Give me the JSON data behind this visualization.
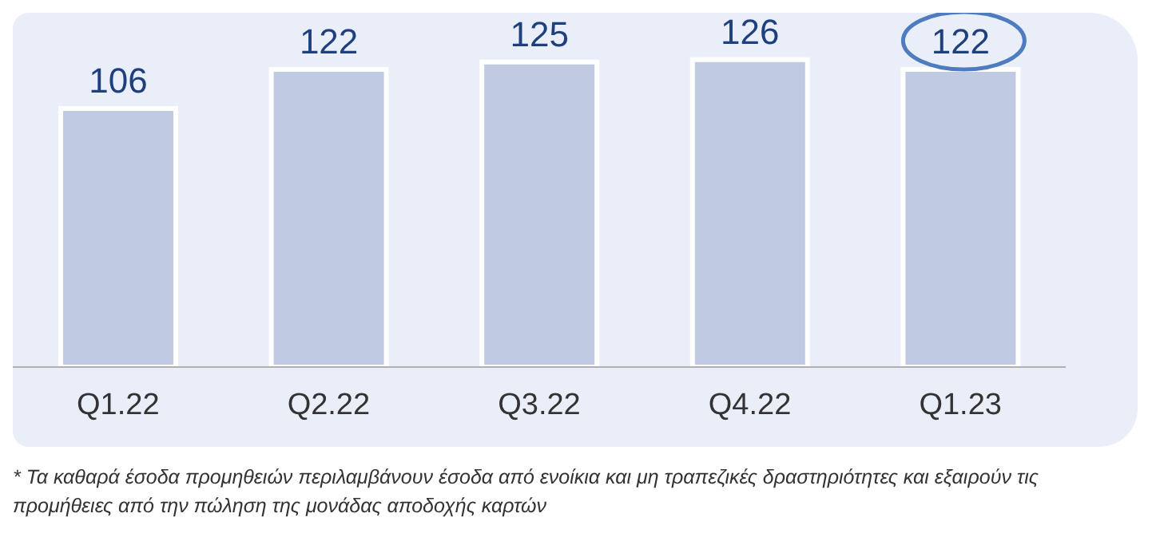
{
  "chart_data": {
    "type": "bar",
    "categories": [
      "Q1.22",
      "Q2.22",
      "Q3.22",
      "Q4.22",
      "Q1.23"
    ],
    "values": [
      106,
      122,
      125,
      126,
      122
    ],
    "color": "#c0cbe3",
    "tick_labels": "x",
    "data_labels": true,
    "annotations": [
      "* Τα καθαρά έσοδα προμηθειών περιλαμβάνουν έσοδα από ενοίκια και μη τραπεζικές δραστηριότητες και εξαιρούν τις προμήθειες από την πώληση της μονάδας αποδοχής καρτών"
    ]
  }
}
